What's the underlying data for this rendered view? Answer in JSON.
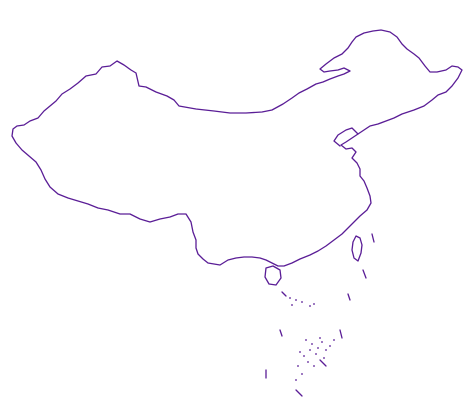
{
  "map": {
    "region": "China",
    "outline_color": "#5a1d96",
    "background_color": "#ffffff",
    "features": [
      "mainland-outline",
      "hainan-island",
      "taiwan-island",
      "south-sea-islands",
      "nine-dash-line"
    ]
  }
}
